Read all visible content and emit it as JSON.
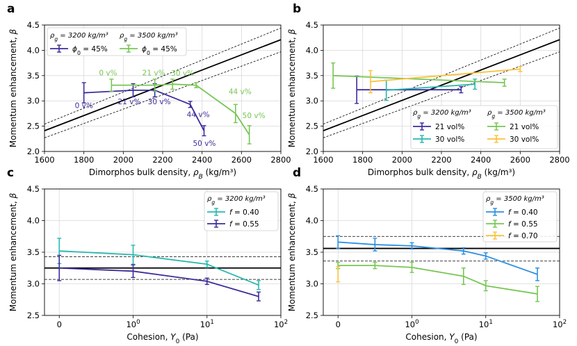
{
  "panel_letters": [
    "a",
    "b",
    "c",
    "d"
  ],
  "chart_data": [
    {
      "panel": "a",
      "type": "line",
      "xlabel": "Dimorphos bulk density, ρ_B (kg/m³)",
      "ylabel": "Momentum enhancement, β",
      "xlim": [
        1600,
        2800
      ],
      "ylim": [
        2.0,
        4.5
      ],
      "xticks": [
        1600,
        1800,
        2000,
        2200,
        2400,
        2600,
        2800
      ],
      "yticks": [
        2.0,
        2.5,
        3.0,
        3.5,
        4.0,
        4.5
      ],
      "grid": true,
      "reference_line": {
        "x": [
          1600,
          2800
        ],
        "y": [
          2.41,
          4.21
        ]
      },
      "reference_bounds": [
        {
          "x": [
            1600,
            2800
          ],
          "y": [
            2.54,
            4.44
          ]
        },
        {
          "x": [
            1600,
            2800
          ],
          "y": [
            2.27,
            3.97
          ]
        }
      ],
      "legend": {
        "placement": "top-left",
        "titles": [
          "ρg = 3200 kg/m³",
          "ρg = 3500 kg/m³"
        ]
      },
      "series": [
        {
          "name": "ϕ0 = 45%",
          "group": "ρg = 3200 kg/m³",
          "color": "#3b2d9c",
          "x": [
            1800,
            2050,
            2160,
            2340,
            2410
          ],
          "y": [
            3.16,
            3.21,
            3.21,
            2.93,
            2.41
          ],
          "err": [
            0.2,
            0.13,
            0.13,
            0.06,
            0.1
          ],
          "labels": [
            "0 v%",
            "21 v%",
            "30 v%",
            "44 v%",
            "50 v%"
          ]
        },
        {
          "name": "ϕ0 = 45%",
          "group": "ρg = 3500 kg/m³",
          "color": "#77c653",
          "x": [
            1940,
            2160,
            2250,
            2370,
            2570,
            2640
          ],
          "y": [
            3.31,
            3.31,
            3.33,
            3.31,
            2.75,
            2.33
          ],
          "err": [
            0.12,
            0.12,
            0.1,
            0.05,
            0.18,
            0.18
          ],
          "labels": [
            "0 v%",
            "21 v%",
            "30 v%",
            "",
            "44 v%",
            "50 v%"
          ]
        }
      ]
    },
    {
      "panel": "b",
      "type": "line",
      "xlabel": "Dimorphos bulk density, ρ_B (kg/m³)",
      "ylabel": "Momentum enhancement, β",
      "xlim": [
        1600,
        2800
      ],
      "ylim": [
        2.0,
        4.5
      ],
      "xticks": [
        1600,
        1800,
        2000,
        2200,
        2400,
        2600,
        2800
      ],
      "yticks": [
        2.0,
        2.5,
        3.0,
        3.5,
        4.0,
        4.5
      ],
      "grid": true,
      "reference_line": {
        "x": [
          1600,
          2800
        ],
        "y": [
          2.41,
          4.21
        ]
      },
      "reference_bounds": [
        {
          "x": [
            1600,
            2800
          ],
          "y": [
            2.54,
            4.44
          ]
        },
        {
          "x": [
            1600,
            2800
          ],
          "y": [
            2.27,
            3.97
          ]
        }
      ],
      "legend": {
        "placement": "bottom-right",
        "titles": [
          "ρg = 3200 kg/m³",
          "ρg = 3500 kg/m³"
        ]
      },
      "series": [
        {
          "name": "21 vol%",
          "group": "ρg = 3200 kg/m³",
          "color": "#3b2d9c",
          "x": [
            1770,
            2300
          ],
          "y": [
            3.22,
            3.22
          ],
          "err": [
            0.27,
            0.06
          ]
        },
        {
          "name": "30 vol%",
          "group": "ρg = 3200 kg/m³",
          "color": "#2ab8ad",
          "x": [
            1920,
            2370
          ],
          "y": [
            3.21,
            3.33
          ],
          "err": [
            0.2,
            0.1
          ]
        },
        {
          "name": "21 vol%",
          "group": "ρg = 3500 kg/m³",
          "color": "#77c653",
          "x": [
            1650,
            2520
          ],
          "y": [
            3.5,
            3.36
          ],
          "err": [
            0.25,
            0.07
          ]
        },
        {
          "name": "30 vol%",
          "group": "ρg = 3500 kg/m³",
          "color": "#f9c13d",
          "x": [
            1840,
            2600
          ],
          "y": [
            3.38,
            3.63
          ],
          "err": [
            0.22,
            0.05
          ]
        }
      ]
    },
    {
      "panel": "c",
      "type": "line",
      "xlabel": "Cohesion, Y_0 (Pa)",
      "ylabel": "Momentum enhancement, β",
      "xscale": "symlog",
      "xlim": [
        -0.3,
        100
      ],
      "ylim": [
        2.5,
        4.5
      ],
      "xticks": [
        "0",
        "10^0",
        "10^1",
        "10^2"
      ],
      "yticks": [
        2.5,
        3.0,
        3.5,
        4.0,
        4.5
      ],
      "grid": true,
      "reference_line": {
        "y": 3.25
      },
      "reference_bounds": [
        {
          "y": 3.43
        },
        {
          "y": 3.07
        }
      ],
      "legend": {
        "placement": "top-right",
        "titles": [
          "ρg = 3200 kg/m³"
        ]
      },
      "series": [
        {
          "name": "f = 0.40",
          "color": "#2ab8ad",
          "x": [
            0,
            1,
            10,
            50
          ],
          "y": [
            3.52,
            3.46,
            3.31,
            2.98
          ],
          "err": [
            0.2,
            0.15,
            0.05,
            0.07
          ]
        },
        {
          "name": "f = 0.55",
          "color": "#3b2d9c",
          "x": [
            0,
            1,
            10,
            50
          ],
          "y": [
            3.25,
            3.2,
            3.04,
            2.8
          ],
          "err": [
            0.2,
            0.1,
            0.05,
            0.07
          ]
        }
      ]
    },
    {
      "panel": "d",
      "type": "line",
      "xlabel": "Cohesion, Y_0 (Pa)",
      "ylabel": "Momentum enhancement, β",
      "xscale": "symlog",
      "xlim": [
        -0.3,
        100
      ],
      "ylim": [
        2.5,
        4.5
      ],
      "xticks": [
        "0",
        "10^0",
        "10^1",
        "10^2"
      ],
      "yticks": [
        2.5,
        3.0,
        3.5,
        4.0,
        4.5
      ],
      "grid": true,
      "reference_line": {
        "y": 3.56
      },
      "reference_bounds": [
        {
          "y": 3.75
        },
        {
          "y": 3.36
        }
      ],
      "legend": {
        "placement": "top-right",
        "titles": [
          "ρg = 3500 kg/m³"
        ]
      },
      "series": [
        {
          "name": "f = 0.40",
          "color": "#2d8fe0",
          "x": [
            0,
            0.5,
            1,
            5,
            10,
            50
          ],
          "y": [
            3.66,
            3.62,
            3.6,
            3.52,
            3.44,
            3.15
          ],
          "err": [
            0.1,
            0.1,
            0.05,
            0.05,
            0.05,
            0.1
          ]
        },
        {
          "name": "f = 0.55",
          "color": "#77c653",
          "x": [
            0,
            0.5,
            1,
            5,
            10,
            50
          ],
          "y": [
            3.29,
            3.29,
            3.26,
            3.12,
            2.97,
            2.84
          ],
          "err": [
            0.05,
            0.05,
            0.08,
            0.13,
            0.08,
            0.12
          ]
        },
        {
          "name": "f = 0.70",
          "color": "#f9c13d",
          "x": [
            0
          ],
          "y": [
            3.15
          ],
          "err": [
            0.12
          ]
        }
      ]
    }
  ]
}
